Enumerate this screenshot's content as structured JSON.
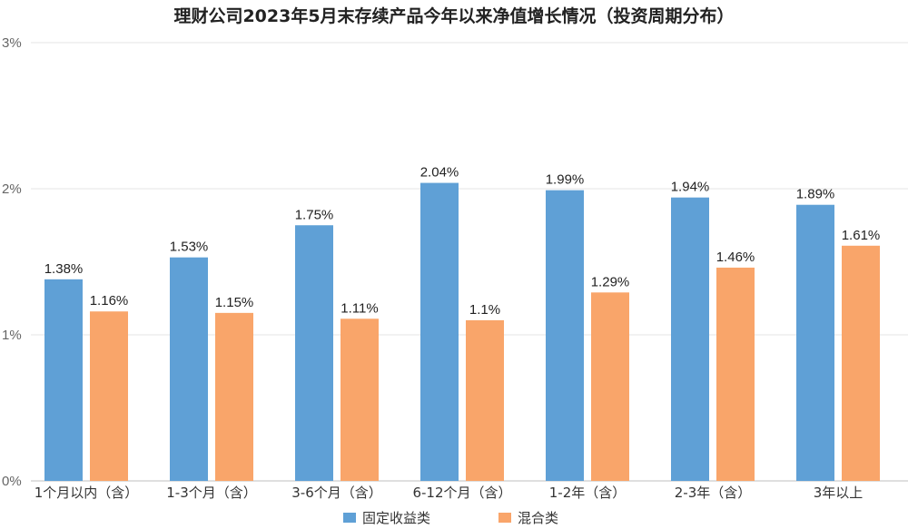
{
  "chart_data": {
    "type": "bar",
    "title": "理财公司2023年5月末存续产品今年以来净值增长情况（投资周期分布）",
    "categories": [
      "1个月以内（含）",
      "1-3个月（含）",
      "3-6个月（含）",
      "6-12个月（含）",
      "1-2年（含）",
      "2-3年（含）",
      "3年以上"
    ],
    "series": [
      {
        "name": "固定收益类",
        "color": "#5fa0d6",
        "values": [
          1.38,
          1.53,
          1.75,
          2.04,
          1.99,
          1.94,
          1.89
        ],
        "labels": [
          "1.38%",
          "1.53%",
          "1.75%",
          "2.04%",
          "1.99%",
          "1.94%",
          "1.89%"
        ]
      },
      {
        "name": "混合类",
        "color": "#f9a56a",
        "values": [
          1.16,
          1.15,
          1.11,
          1.1,
          1.29,
          1.46,
          1.61
        ],
        "labels": [
          "1.16%",
          "1.15%",
          "1.11%",
          "1.1%",
          "1.29%",
          "1.46%",
          "1.61%"
        ]
      }
    ],
    "ylim": [
      0,
      3
    ],
    "yticks": [
      "0%",
      "1%",
      "2%",
      "3%"
    ],
    "ylabel_unit": "%",
    "grid": true,
    "legend": "bottom-center"
  }
}
